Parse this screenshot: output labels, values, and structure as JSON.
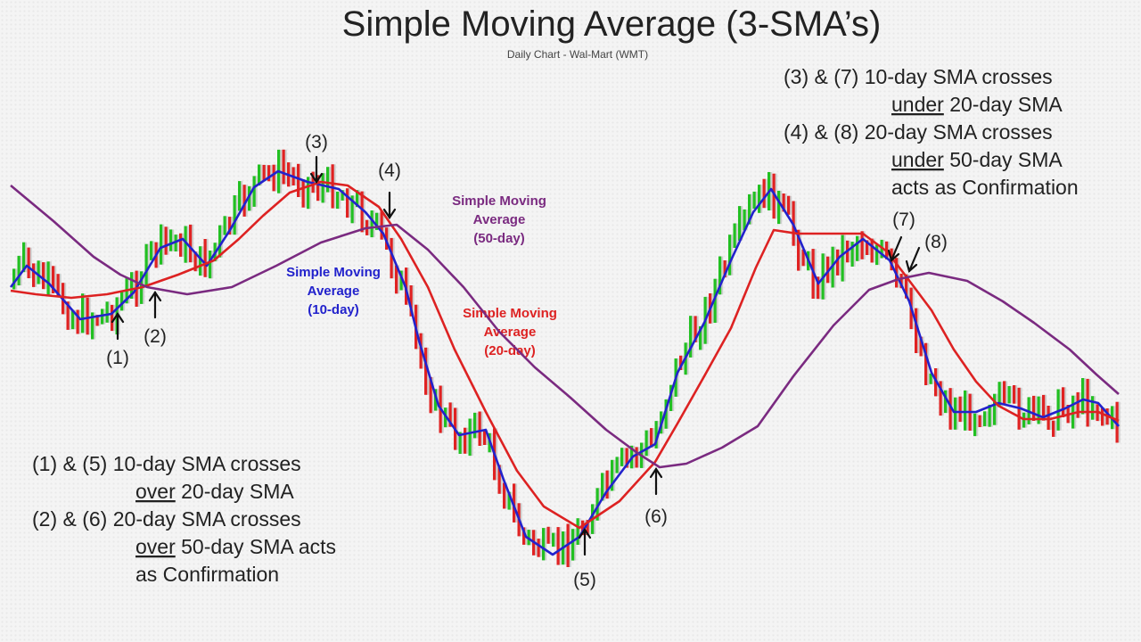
{
  "chart_data": {
    "type": "line",
    "title": "Simple Moving Average (3-SMA’s)",
    "subtitle": "Daily Chart - Wal-Mart (WMT)",
    "price_bar_colors": {
      "up": "#22c022",
      "down": "#e02222"
    },
    "series": [
      {
        "name": "Simple Moving Average (10-day)",
        "color": "#2222cc",
        "label_lines": [
          "Simple Moving",
          "Average",
          "(10-day)"
        ],
        "points": [
          [
            12,
            322
          ],
          [
            30,
            298
          ],
          [
            55,
            318
          ],
          [
            90,
            358
          ],
          [
            125,
            352
          ],
          [
            150,
            328
          ],
          [
            180,
            278
          ],
          [
            205,
            268
          ],
          [
            232,
            298
          ],
          [
            258,
            258
          ],
          [
            285,
            210
          ],
          [
            312,
            192
          ],
          [
            345,
            204
          ],
          [
            380,
            212
          ],
          [
            410,
            238
          ],
          [
            430,
            262
          ],
          [
            455,
            322
          ],
          [
            470,
            382
          ],
          [
            492,
            455
          ],
          [
            515,
            488
          ],
          [
            545,
            482
          ],
          [
            565,
            538
          ],
          [
            590,
            602
          ],
          [
            620,
            622
          ],
          [
            650,
            602
          ],
          [
            680,
            552
          ],
          [
            710,
            512
          ],
          [
            735,
            498
          ],
          [
            760,
            418
          ],
          [
            790,
            362
          ],
          [
            820,
            292
          ],
          [
            845,
            238
          ],
          [
            865,
            212
          ],
          [
            890,
            252
          ],
          [
            918,
            318
          ],
          [
            942,
            288
          ],
          [
            968,
            268
          ],
          [
            998,
            292
          ],
          [
            1020,
            338
          ],
          [
            1045,
            418
          ],
          [
            1070,
            462
          ],
          [
            1095,
            462
          ],
          [
            1120,
            452
          ],
          [
            1145,
            458
          ],
          [
            1170,
            468
          ],
          [
            1195,
            458
          ],
          [
            1215,
            448
          ],
          [
            1232,
            452
          ],
          [
            1255,
            478
          ]
        ]
      },
      {
        "name": "Simple Moving Average (20-day)",
        "color": "#dd2222",
        "label_lines": [
          "Simple Moving",
          "Average",
          "(20-day)"
        ],
        "points": [
          [
            12,
            326
          ],
          [
            40,
            330
          ],
          [
            80,
            334
          ],
          [
            120,
            330
          ],
          [
            160,
            322
          ],
          [
            200,
            308
          ],
          [
            240,
            292
          ],
          [
            268,
            268
          ],
          [
            295,
            242
          ],
          [
            325,
            216
          ],
          [
            360,
            204
          ],
          [
            390,
            208
          ],
          [
            425,
            232
          ],
          [
            450,
            268
          ],
          [
            480,
            322
          ],
          [
            510,
            392
          ],
          [
            545,
            462
          ],
          [
            580,
            528
          ],
          [
            610,
            568
          ],
          [
            650,
            592
          ],
          [
            695,
            562
          ],
          [
            735,
            518
          ],
          [
            760,
            475
          ],
          [
            790,
            422
          ],
          [
            820,
            368
          ],
          [
            848,
            300
          ],
          [
            868,
            258
          ],
          [
            895,
            262
          ],
          [
            935,
            262
          ],
          [
            968,
            262
          ],
          [
            995,
            282
          ],
          [
            1015,
            308
          ],
          [
            1045,
            348
          ],
          [
            1070,
            392
          ],
          [
            1095,
            428
          ],
          [
            1120,
            455
          ],
          [
            1148,
            470
          ],
          [
            1178,
            470
          ],
          [
            1210,
            462
          ],
          [
            1232,
            462
          ],
          [
            1255,
            472
          ]
        ]
      },
      {
        "name": "Simple Moving Average (50-day)",
        "color": "#7a2a80",
        "label_lines": [
          "Simple Moving",
          "Average",
          "(50-day)"
        ],
        "points": [
          [
            12,
            208
          ],
          [
            60,
            248
          ],
          [
            105,
            288
          ],
          [
            135,
            308
          ],
          [
            165,
            322
          ],
          [
            210,
            330
          ],
          [
            260,
            322
          ],
          [
            310,
            298
          ],
          [
            360,
            272
          ],
          [
            410,
            256
          ],
          [
            445,
            252
          ],
          [
            480,
            280
          ],
          [
            520,
            322
          ],
          [
            560,
            372
          ],
          [
            600,
            412
          ],
          [
            640,
            446
          ],
          [
            680,
            482
          ],
          [
            715,
            508
          ],
          [
            740,
            524
          ],
          [
            770,
            520
          ],
          [
            810,
            502
          ],
          [
            850,
            478
          ],
          [
            890,
            422
          ],
          [
            935,
            365
          ],
          [
            975,
            325
          ],
          [
            1008,
            313
          ],
          [
            1042,
            306
          ],
          [
            1085,
            315
          ],
          [
            1125,
            338
          ],
          [
            1160,
            362
          ],
          [
            1200,
            392
          ],
          [
            1230,
            420
          ],
          [
            1255,
            442
          ]
        ]
      }
    ],
    "annotations": [
      {
        "label": "(1)",
        "text_x": 132,
        "text_y": 408,
        "arrow": "up",
        "ax": 132,
        "ay": 352
      },
      {
        "label": "(2)",
        "text_x": 174,
        "text_y": 384,
        "arrow": "up",
        "ax": 174,
        "ay": 328
      },
      {
        "label": "(3)",
        "text_x": 355,
        "text_y": 166,
        "arrow": "down",
        "ax": 355,
        "ay": 204
      },
      {
        "label": "(4)",
        "text_x": 437,
        "text_y": 198,
        "arrow": "down",
        "ax": 437,
        "ay": 244
      },
      {
        "label": "(5)",
        "text_x": 656,
        "text_y": 657,
        "arrow": "up",
        "ax": 656,
        "ay": 594
      },
      {
        "label": "(6)",
        "text_x": 736,
        "text_y": 586,
        "arrow": "up",
        "ax": 736,
        "ay": 526
      },
      {
        "label": "(7)",
        "text_x": 1014,
        "text_y": 253,
        "arrow": "downleft",
        "ax": 1000,
        "ay": 292
      },
      {
        "label": "(8)",
        "text_x": 1050,
        "text_y": 278,
        "arrow": "downleft",
        "ax": 1020,
        "ay": 304
      }
    ],
    "notes_top_right": {
      "lines": [
        {
          "prefix": "(3) & (7) ",
          "text": "10-day SMA crosses",
          "underline": ""
        },
        {
          "prefix": "",
          "text": " 20-day SMA",
          "underline": "under"
        },
        {
          "prefix": "(4) & (8) ",
          "text": "20-day SMA crosses",
          "underline": ""
        },
        {
          "prefix": "",
          "text": " 50-day SMA",
          "underline": "under"
        },
        {
          "prefix": "",
          "text": "acts as Confirmation",
          "underline": ""
        }
      ]
    },
    "notes_bottom_left": {
      "lines": [
        {
          "prefix": "(1) & (5) ",
          "text": "10-day SMA crosses",
          "underline": ""
        },
        {
          "prefix": "",
          "text": " 20-day SMA",
          "underline": "over"
        },
        {
          "prefix": "(2) & (6) ",
          "text": "20-day SMA crosses",
          "underline": ""
        },
        {
          "prefix": "",
          "text": " 50-day SMA acts",
          "underline": "over"
        },
        {
          "prefix": "",
          "text": "as Confirmation",
          "underline": ""
        }
      ]
    }
  }
}
